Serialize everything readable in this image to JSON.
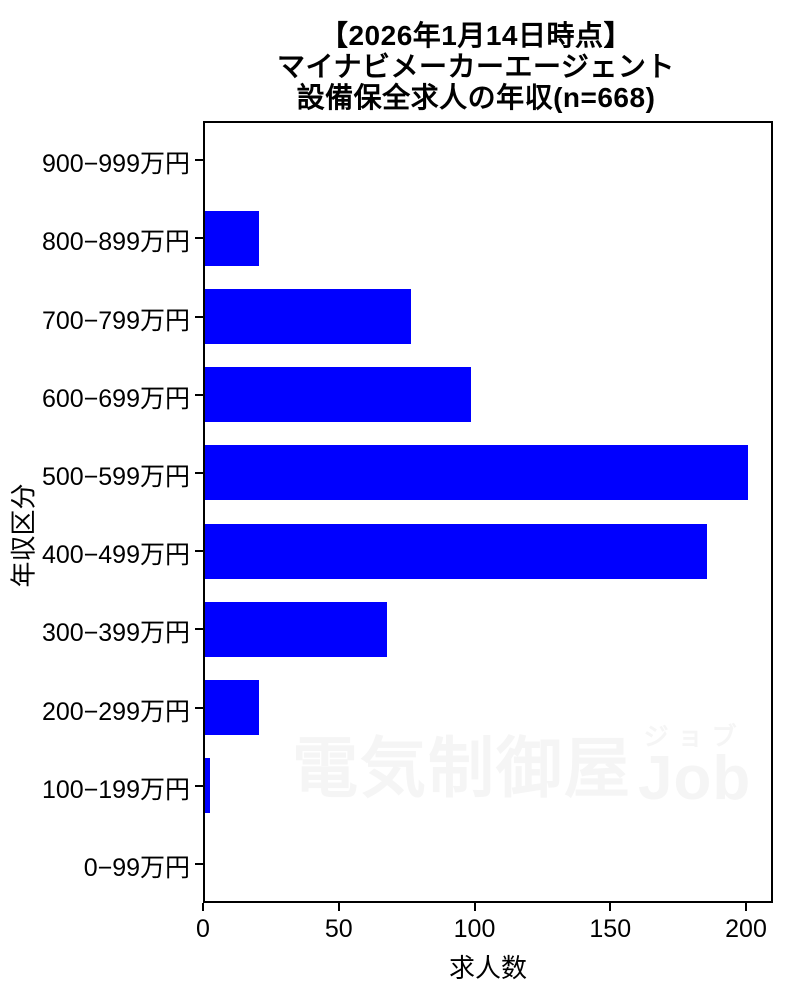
{
  "title": {
    "line1": "【2026年1月14日時点】",
    "line2": "マイナビメーカーエージェント",
    "line3": "設備保全求人の年収(n=668)"
  },
  "chart_data": {
    "type": "bar",
    "orientation": "horizontal",
    "title": "【2026年1月14日時点】 マイナビメーカーエージェント 設備保全求人の年収(n=668)",
    "n_total": 668,
    "categories": [
      "900−999万円",
      "800−899万円",
      "700−799万円",
      "600−699万円",
      "500−599万円",
      "400−499万円",
      "300−399万円",
      "200−299万円",
      "100−199万円",
      "0−99万円"
    ],
    "values": [
      0,
      20,
      76,
      98,
      200,
      185,
      67,
      20,
      2,
      0
    ],
    "xlabel": "求人数",
    "ylabel": "年収区分",
    "x_ticks": [
      0,
      50,
      100,
      150,
      200
    ],
    "xlim": [
      0,
      210
    ],
    "bar_color": "#0000ff",
    "grid": false,
    "legend": "none"
  },
  "watermark": {
    "main": "電気制御屋",
    "furigana": "ジョブ",
    "latin": "Job"
  }
}
